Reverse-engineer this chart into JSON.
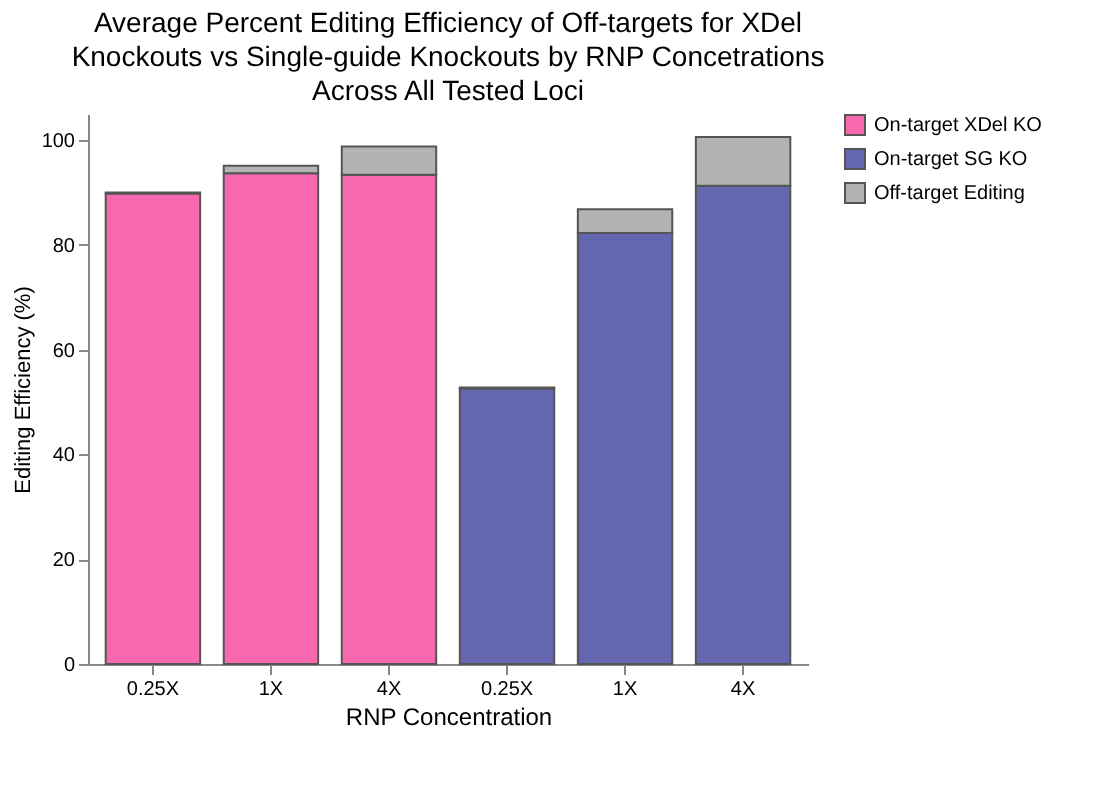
{
  "chart_data": {
    "type": "bar",
    "stacked": true,
    "title": "Average Percent Editing Efficiency of Off-targets for XDel Knockouts vs Single-guide Knockouts by RNP Concetrations Across All Tested Loci",
    "xlabel": "RNP Concentration",
    "ylabel": "Editing Efficiency (%)",
    "categories": [
      "0.25X",
      "1X",
      "4X",
      "0.25X",
      "1X",
      "4X"
    ],
    "series": [
      {
        "name": "On-target XDel KO",
        "color": "#f768ae",
        "values": [
          89.8,
          93.7,
          93.4,
          null,
          null,
          null
        ]
      },
      {
        "name": "On-target SG KO",
        "color": "#6566b0",
        "values": [
          null,
          null,
          null,
          52.6,
          82.3,
          91.3
        ]
      },
      {
        "name": "Off-target Editing",
        "color": "#b3b3b3",
        "values": [
          0.2,
          1.4,
          5.4,
          0.2,
          4.5,
          9.3
        ]
      }
    ],
    "ylim": [
      0,
      105
    ],
    "yticks": [
      0,
      20,
      40,
      60,
      80,
      100
    ],
    "grid": false,
    "legend": "top right"
  }
}
